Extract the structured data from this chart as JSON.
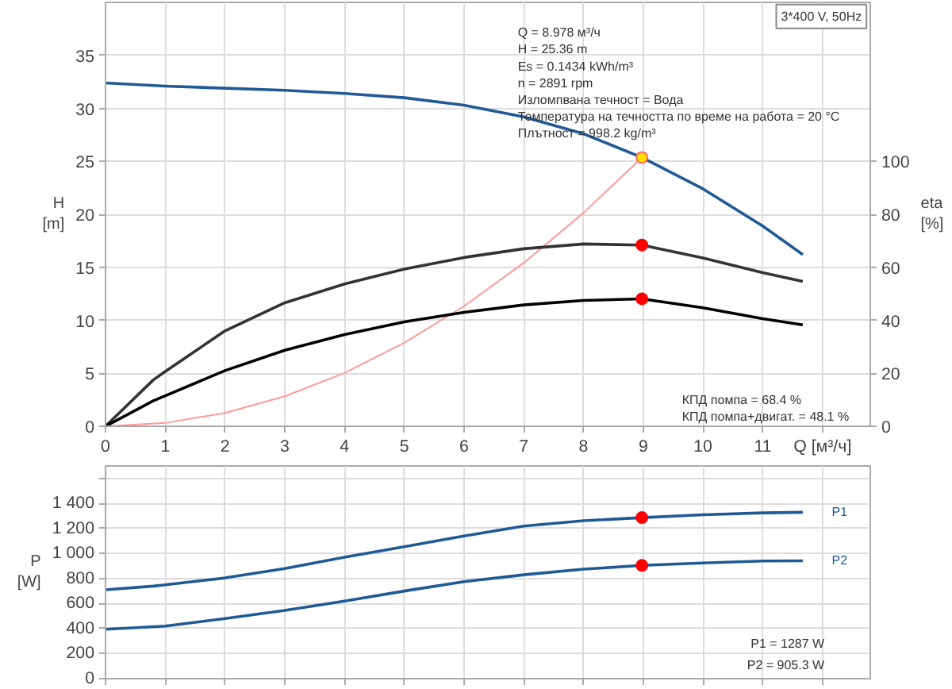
{
  "chart_data": [
    {
      "type": "line",
      "ylabel": "H [m]",
      "y2label": "eta [%]",
      "xlim": [
        0,
        12.8
      ],
      "xticks": [
        0,
        1,
        2,
        3,
        4,
        5,
        6,
        7,
        8,
        9,
        10,
        11,
        {
          "value": 12,
          "label": "Q [м³/ч]"
        }
      ],
      "ylim": [
        0,
        40
      ],
      "yticks": [
        0,
        5,
        10,
        15,
        20,
        25,
        30,
        35
      ],
      "y2lim": [
        0,
        160
      ],
      "y2ticks": [
        0,
        20,
        40,
        60,
        80,
        100
      ],
      "grid": true,
      "line_style": "solid",
      "series": [
        {
          "color": "#1f5a96",
          "x": [
            0,
            1,
            2,
            3,
            4,
            5,
            6,
            7,
            8,
            8.978,
            10,
            11,
            11.67
          ],
          "values": [
            32.4,
            32.1,
            31.9,
            31.7,
            31.4,
            31.0,
            30.3,
            29.2,
            27.6,
            25.36,
            22.4,
            18.9,
            16.2
          ]
        },
        {
          "color": "#ff9999",
          "x": [
            0,
            1,
            2,
            3,
            4,
            5,
            6,
            7,
            8,
            8.978
          ],
          "values": [
            0,
            0.31,
            1.26,
            2.83,
            5.03,
            7.87,
            11.33,
            15.42,
            20.14,
            25.36
          ]
        },
        {
          "axis": "y2",
          "color": "#333333",
          "x": [
            0,
            0.8,
            1,
            2,
            3,
            4,
            5,
            6,
            7,
            8,
            8.978,
            10,
            11,
            11.67
          ],
          "values": [
            0,
            17.5,
            20.7,
            36,
            46.6,
            53.7,
            59.3,
            63.7,
            67,
            68.8,
            68.4,
            63.5,
            58,
            54.7
          ]
        },
        {
          "axis": "y2",
          "color": "#000000",
          "x": [
            0,
            0.8,
            1,
            2,
            3,
            4,
            5,
            6,
            7,
            8,
            8.978,
            10,
            11,
            11.67
          ],
          "values": [
            0,
            9.6,
            11.5,
            21,
            28.7,
            34.6,
            39.4,
            43,
            45.8,
            47.5,
            48.1,
            44.7,
            40.6,
            38.3
          ]
        },
        {
          "type": "scatter",
          "marker": "circle",
          "color": "#ffe000",
          "x": [
            8.978
          ],
          "values": [
            25.36
          ]
        },
        {
          "type": "scatter",
          "marker": "circle",
          "axis": "y2",
          "color": "#ff0000",
          "x": [
            8.978,
            8.978
          ],
          "values": [
            68.4,
            48.1
          ]
        }
      ],
      "annotations": [
        "3*400 V, 50Hz",
        "Q = 8.978 м³/ч",
        "H = 25.36 m",
        "Es = 0.1434 kWh/m³",
        "n = 2891 rpm",
        "Изломпвана течност = Вода",
        "Температура на течността по време на работа = 20 °C",
        "Плътност = 998.2 kg/m³",
        "КПД помпа = 68.4 %",
        "КПД помпа+двигат. = 48.1 %"
      ]
    },
    {
      "type": "line",
      "ylabel": "P [W]",
      "tick_labels": "y",
      "xlim": [
        0,
        12.8
      ],
      "xticks": [
        0,
        1,
        2,
        3,
        4,
        5,
        6,
        7,
        8,
        9,
        10,
        11,
        12
      ],
      "ylim": [
        0,
        1700
      ],
      "yticks": [
        0,
        200,
        400,
        600,
        800,
        {
          "value": 1000,
          "label": "1 000"
        },
        {
          "value": 1200,
          "label": "1 200"
        },
        {
          "value": 1400,
          "label": "1 400"
        },
        {
          "value": 1600,
          "label": null
        }
      ],
      "grid": true,
      "line_style": "solid",
      "series": [
        {
          "name": "P1",
          "color": "#1f5a96",
          "x": [
            0,
            0.8,
            1,
            2,
            3,
            4,
            5,
            6,
            7,
            8,
            8.978,
            10,
            11,
            11.67
          ],
          "values": [
            710,
            740,
            750,
            805,
            880,
            970,
            1055,
            1140,
            1220,
            1262,
            1287,
            1310,
            1325,
            1330
          ]
        },
        {
          "name": "P2",
          "color": "#1f5a96",
          "x": [
            0,
            1,
            2,
            3,
            4,
            5,
            6,
            7,
            8,
            8.978,
            10,
            11,
            11.67
          ],
          "values": [
            395,
            420,
            480,
            545,
            620,
            700,
            775,
            830,
            875,
            905.3,
            925,
            940,
            942
          ]
        },
        {
          "type": "scatter",
          "marker": "circle",
          "color": "#ff0000",
          "x": [
            8.978,
            8.978
          ],
          "values": [
            1287,
            905.3
          ]
        }
      ],
      "annotations": [
        "P1 = 1287 W",
        "P2 = 905.3 W"
      ]
    }
  ]
}
